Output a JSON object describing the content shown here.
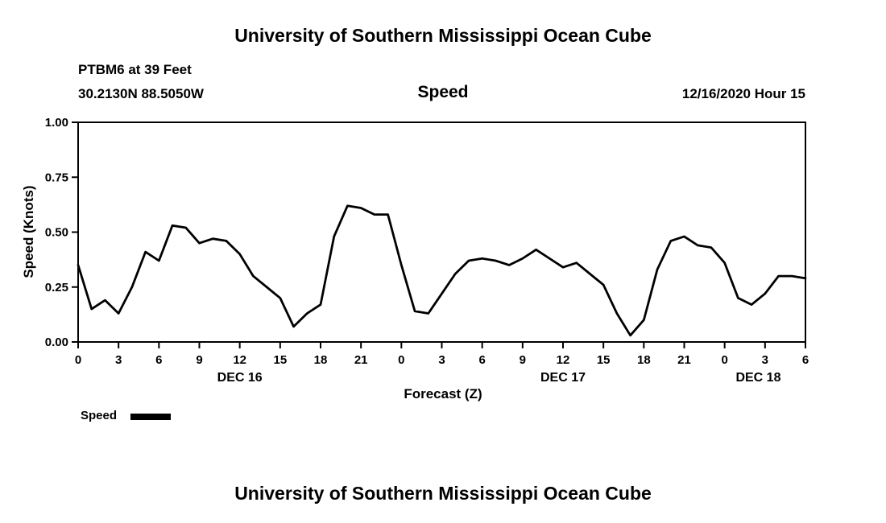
{
  "header": {
    "top_title": "University of Southern Mississippi Ocean Cube",
    "station_line1": "PTBM6 at 39 Feet",
    "station_line2": "30.2130N 88.5050W",
    "plot_title": "Speed",
    "datetime": "12/16/2020 Hour 15"
  },
  "footer": {
    "bottom_title": "University of Southern Mississippi Ocean Cube"
  },
  "legend": {
    "label": "Speed",
    "color": "#000000"
  },
  "chart_data": {
    "type": "line",
    "title": "Speed",
    "xlabel": "Forecast (Z)",
    "ylabel": "Speed (Knots)",
    "ylim": [
      0,
      1
    ],
    "yticks": [
      0.0,
      0.25,
      0.5,
      0.75,
      1.0
    ],
    "ytick_labels": [
      "0.00",
      "0.25",
      "0.50",
      "0.75",
      "1.00"
    ],
    "x_hours_start": 0,
    "x_hours_end": 54,
    "xtick_step": 3,
    "xtick_labels": [
      "0",
      "3",
      "6",
      "9",
      "12",
      "15",
      "18",
      "21",
      "0",
      "3",
      "6",
      "9",
      "12",
      "15",
      "18",
      "21",
      "0",
      "3",
      "6"
    ],
    "date_labels": [
      {
        "label": "DEC 16",
        "t": 12
      },
      {
        "label": "DEC 17",
        "t": 36
      },
      {
        "label": "DEC 18",
        "t": 50.5
      }
    ],
    "grid": false,
    "legend_position": "bottom-left",
    "line_color": "#000000",
    "series": [
      {
        "name": "Speed",
        "color": "#000000",
        "x": [
          0,
          1,
          2,
          3,
          4,
          5,
          6,
          7,
          8,
          9,
          10,
          11,
          12,
          13,
          14,
          15,
          16,
          17,
          18,
          19,
          20,
          21,
          22,
          23,
          24,
          25,
          26,
          27,
          28,
          29,
          30,
          31,
          32,
          33,
          34,
          35,
          36,
          37,
          38,
          39,
          40,
          41,
          42,
          43,
          44,
          45,
          46,
          47,
          48,
          49,
          50,
          51,
          52,
          53,
          54
        ],
        "values": [
          0.35,
          0.15,
          0.19,
          0.13,
          0.25,
          0.41,
          0.37,
          0.53,
          0.52,
          0.45,
          0.47,
          0.46,
          0.4,
          0.3,
          0.25,
          0.2,
          0.07,
          0.13,
          0.17,
          0.48,
          0.62,
          0.61,
          0.58,
          0.58,
          0.35,
          0.14,
          0.13,
          0.22,
          0.31,
          0.37,
          0.38,
          0.37,
          0.35,
          0.38,
          0.42,
          0.38,
          0.34,
          0.36,
          0.31,
          0.26,
          0.13,
          0.03,
          0.1,
          0.33,
          0.46,
          0.48,
          0.44,
          0.43,
          0.36,
          0.2,
          0.17,
          0.22,
          0.3,
          0.3,
          0.29
        ]
      }
    ]
  }
}
